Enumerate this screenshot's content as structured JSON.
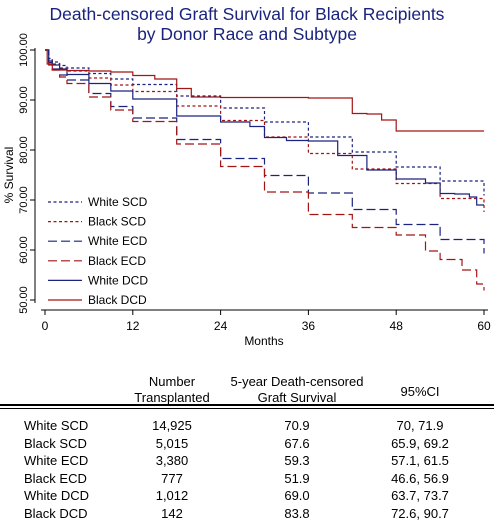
{
  "chart_data": {
    "type": "line",
    "title_line1": "Death-censored Graft Survival for Black Recipients",
    "title_line2": "by Donor Race and Subtype",
    "xlabel": "Months",
    "ylabel": "% Survival",
    "xlim": [
      0,
      60
    ],
    "ylim": [
      50,
      100
    ],
    "x_ticks": [
      "0",
      "12",
      "24",
      "36",
      "48",
      "60"
    ],
    "y_ticks": [
      "50.00",
      "60.00",
      "70.00",
      "80.00",
      "90.00",
      "100.00"
    ],
    "grid": false,
    "legend_position": "bottom-left",
    "series": [
      {
        "name": "White SCD",
        "color": "#1a237e",
        "dash": "3,2.5",
        "x": [
          0,
          0.5,
          1,
          2,
          3,
          6,
          9,
          12,
          18,
          24,
          30,
          36,
          42,
          48,
          54,
          60
        ],
        "y": [
          100,
          98.3,
          97.6,
          96.9,
          96.4,
          95.3,
          94.2,
          93.1,
          90.8,
          88.4,
          85.6,
          82.6,
          79.6,
          76.6,
          73.8,
          70.9
        ]
      },
      {
        "name": "Black SCD",
        "color": "#a31515",
        "dash": "3,2.5",
        "x": [
          0,
          0.5,
          1,
          2,
          3,
          6,
          9,
          12,
          18,
          24,
          30,
          36,
          42,
          48,
          54,
          60
        ],
        "y": [
          100,
          98,
          97.2,
          96.4,
          95.8,
          94.4,
          93,
          91.7,
          88.8,
          85.9,
          82.6,
          79.3,
          76.2,
          73.3,
          70.3,
          67.6
        ]
      },
      {
        "name": "White ECD",
        "color": "#1a237e",
        "dash": "9,4",
        "x": [
          0,
          0.5,
          1,
          2,
          3,
          6,
          9,
          12,
          18,
          24,
          30,
          36,
          42,
          48,
          54,
          60
        ],
        "y": [
          100,
          97.5,
          96.2,
          95,
          94,
          91.3,
          88.7,
          86.4,
          82.1,
          78.3,
          74.9,
          71.4,
          68.1,
          65.1,
          62.1,
          59.3
        ]
      },
      {
        "name": "Black ECD",
        "color": "#a31515",
        "dash": "9,4",
        "x": [
          0,
          0.5,
          1,
          2,
          3,
          6,
          9,
          12,
          18,
          24,
          30,
          36,
          42,
          48,
          52,
          54,
          57,
          59,
          60
        ],
        "y": [
          100,
          97,
          96,
          94.6,
          93.3,
          90.6,
          88,
          85.7,
          81.2,
          76.7,
          71.6,
          67.1,
          64.5,
          63,
          59.8,
          58.1,
          56,
          53.2,
          51.9
        ]
      },
      {
        "name": "White DCD",
        "color": "#1a237e",
        "dash": "",
        "x": [
          0,
          0.5,
          1,
          2,
          3,
          6,
          9,
          12,
          18,
          24,
          28,
          30,
          33,
          36,
          40,
          44,
          48,
          52,
          54,
          56,
          58,
          59,
          60
        ],
        "y": [
          100,
          97.8,
          97,
          96.2,
          95.1,
          93.3,
          91.8,
          90.2,
          86.8,
          85.6,
          84.7,
          82.5,
          81.9,
          81.8,
          78.9,
          76,
          74.2,
          73.4,
          71.3,
          71.2,
          70.6,
          69,
          69
        ]
      },
      {
        "name": "Black DCD",
        "color": "#a31515",
        "dash": "",
        "x": [
          0,
          0.3,
          1,
          3,
          6,
          9,
          12,
          15,
          18,
          20,
          24,
          30,
          36,
          42,
          44,
          46,
          47,
          48,
          52,
          56,
          60
        ],
        "y": [
          100,
          97.2,
          96,
          95.9,
          95.8,
          95.6,
          94.9,
          94.2,
          92.3,
          90.6,
          90.5,
          90.5,
          90.4,
          87.3,
          87.2,
          86,
          86,
          83.8,
          83.8,
          83.8,
          83.8
        ]
      }
    ]
  },
  "table": {
    "headers": {
      "number_line1": "Number",
      "number_line2": "Transplanted",
      "survival_line1": "5-year Death-censored",
      "survival_line2": "Graft Survival",
      "ci": "95%CI"
    },
    "rows": [
      {
        "label": "White SCD",
        "number": "14,925",
        "survival": "70.9",
        "ci": "70, 71.9"
      },
      {
        "label": "Black SCD",
        "number": "5,015",
        "survival": "67.6",
        "ci": "65.9, 69.2"
      },
      {
        "label": "White ECD",
        "number": "3,380",
        "survival": "59.3",
        "ci": "57.1, 61.5"
      },
      {
        "label": "Black ECD",
        "number": "777",
        "survival": "51.9",
        "ci": "46.6, 56.9"
      },
      {
        "label": "White DCD",
        "number": "1,012",
        "survival": "69.0",
        "ci": "63.7, 73.7"
      },
      {
        "label": "Black DCD",
        "number": "142",
        "survival": "83.8",
        "ci": "72.6, 90.7"
      }
    ]
  }
}
